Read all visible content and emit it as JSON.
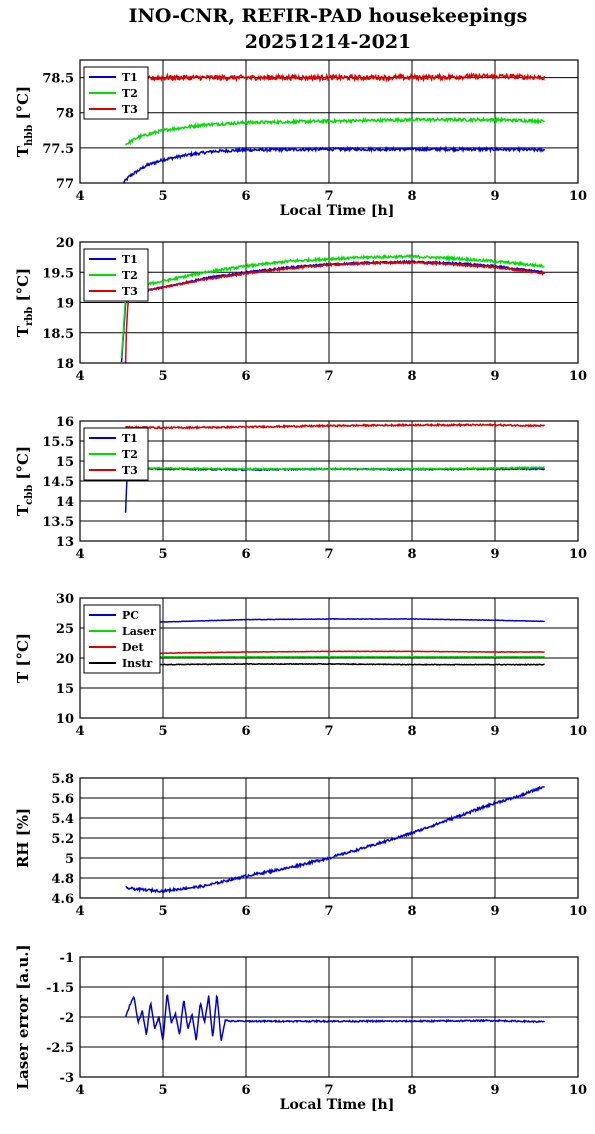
{
  "title_line1": "INO-CNR, REFIR-PAD housekeepings",
  "title_line2": "20251214-2021",
  "chart_data": [
    {
      "type": "line",
      "ylabel_main": "T",
      "ylabel_sub": "hbb",
      "ylabel_unit": " [°C]",
      "xlabel": "Local Time [h]",
      "xlim": [
        4,
        10
      ],
      "ylim": [
        77,
        78.75
      ],
      "yticks": [
        77,
        77.5,
        78,
        78.5
      ],
      "ytick_labels": [
        "77",
        "77.5",
        "78",
        "78.5"
      ],
      "xticks": [
        4,
        5,
        6,
        7,
        8,
        9,
        10
      ],
      "xtick_labels": [
        "4",
        "5",
        "6",
        "7",
        "8",
        "9",
        "10"
      ],
      "grid": true,
      "legend_position": "top-left",
      "series": [
        {
          "name": "T1",
          "color": "#0000dd",
          "noise": 0.02,
          "x": [
            4.52,
            4.6,
            4.8,
            5.0,
            5.3,
            5.6,
            6.0,
            7.0,
            8.0,
            9.0,
            9.6
          ],
          "y": [
            77.0,
            77.1,
            77.25,
            77.33,
            77.4,
            77.45,
            77.47,
            77.48,
            77.48,
            77.48,
            77.47
          ]
        },
        {
          "name": "T2",
          "color": "#00dd00",
          "noise": 0.02,
          "x": [
            4.55,
            4.7,
            5.0,
            5.5,
            6.0,
            7.0,
            8.0,
            9.0,
            9.6
          ],
          "y": [
            77.55,
            77.65,
            77.75,
            77.83,
            77.86,
            77.88,
            77.9,
            77.9,
            77.88
          ]
        },
        {
          "name": "T3",
          "color": "#dd0000",
          "noise": 0.035,
          "x": [
            4.5,
            5.0,
            6.0,
            7.0,
            8.0,
            9.0,
            9.6
          ],
          "y": [
            78.45,
            78.5,
            78.5,
            78.5,
            78.5,
            78.52,
            78.5
          ]
        }
      ]
    },
    {
      "type": "line",
      "ylabel_main": "T",
      "ylabel_sub": "rbb",
      "ylabel_unit": " [°C]",
      "xlabel": "",
      "xlim": [
        4,
        10
      ],
      "ylim": [
        18,
        20
      ],
      "yticks": [
        18,
        18.5,
        19,
        19.5,
        20
      ],
      "ytick_labels": [
        "18",
        "18.5",
        "19",
        "19.5",
        "20"
      ],
      "xticks": [
        4,
        5,
        6,
        7,
        8,
        9,
        10
      ],
      "xtick_labels": [
        "4",
        "5",
        "6",
        "7",
        "8",
        "9",
        "10"
      ],
      "grid": true,
      "legend_position": "top-left",
      "series": [
        {
          "name": "T1",
          "color": "#0000dd",
          "noise": 0.015,
          "x": [
            4.5,
            4.52,
            4.55,
            4.6,
            5.0,
            5.5,
            6.0,
            6.5,
            7.0,
            7.5,
            8.0,
            8.5,
            9.0,
            9.6
          ],
          "y": [
            18.0,
            18.4,
            19.0,
            19.15,
            19.25,
            19.4,
            19.5,
            19.58,
            19.63,
            19.66,
            19.67,
            19.65,
            19.6,
            19.5
          ]
        },
        {
          "name": "T2",
          "color": "#00dd00",
          "noise": 0.02,
          "x": [
            4.5,
            4.52,
            4.55,
            4.6,
            5.0,
            5.5,
            6.0,
            6.5,
            7.0,
            7.5,
            8.0,
            8.5,
            9.0,
            9.6
          ],
          "y": [
            18.1,
            18.5,
            19.1,
            19.25,
            19.35,
            19.5,
            19.6,
            19.68,
            19.72,
            19.75,
            19.76,
            19.73,
            19.68,
            19.6
          ]
        },
        {
          "name": "T3",
          "color": "#dd0000",
          "noise": 0.015,
          "x": [
            4.55,
            4.56,
            4.58,
            4.6,
            5.0,
            5.5,
            6.0,
            6.5,
            7.0,
            7.5,
            8.0,
            8.5,
            9.0,
            9.6
          ],
          "y": [
            18.0,
            18.6,
            19.0,
            19.15,
            19.25,
            19.38,
            19.48,
            19.56,
            19.62,
            19.65,
            19.66,
            19.63,
            19.58,
            19.48
          ]
        }
      ]
    },
    {
      "type": "line",
      "ylabel_main": "T",
      "ylabel_sub": "cbb",
      "ylabel_unit": " [°C]",
      "xlabel": "",
      "xlim": [
        4,
        10
      ],
      "ylim": [
        13,
        16
      ],
      "yticks": [
        13,
        13.5,
        14,
        14.5,
        15,
        15.5,
        16
      ],
      "ytick_labels": [
        "13",
        "13.5",
        "14",
        "14.5",
        "15",
        "15.5",
        "16"
      ],
      "xticks": [
        4,
        5,
        6,
        7,
        8,
        9,
        10
      ],
      "xtick_labels": [
        "4",
        "5",
        "6",
        "7",
        "8",
        "9",
        "10"
      ],
      "grid": true,
      "legend_position": "top-left",
      "series": [
        {
          "name": "T1",
          "color": "#0000dd",
          "noise": 0.015,
          "x": [
            4.55,
            4.56,
            4.57,
            4.6,
            5.0,
            6.0,
            7.0,
            8.0,
            9.0,
            9.6
          ],
          "y": [
            13.7,
            14.3,
            14.75,
            14.8,
            14.8,
            14.78,
            14.8,
            14.79,
            14.8,
            14.8
          ]
        },
        {
          "name": "T2",
          "color": "#00dd00",
          "noise": 0.015,
          "x": [
            4.55,
            4.57,
            4.6,
            5.0,
            6.0,
            7.0,
            8.0,
            9.0,
            9.6
          ],
          "y": [
            14.6,
            14.8,
            14.82,
            14.82,
            14.8,
            14.8,
            14.8,
            14.82,
            14.84
          ]
        },
        {
          "name": "T3",
          "color": "#dd0000",
          "noise": 0.02,
          "x": [
            4.55,
            4.6,
            5.0,
            6.0,
            7.0,
            8.0,
            9.0,
            9.6
          ],
          "y": [
            15.85,
            15.85,
            15.83,
            15.85,
            15.88,
            15.9,
            15.9,
            15.88
          ]
        }
      ]
    },
    {
      "type": "line",
      "ylabel_main": "T",
      "ylabel_sub": "",
      "ylabel_unit": " [°C]",
      "xlabel": "",
      "xlim": [
        4,
        10
      ],
      "ylim": [
        10,
        30
      ],
      "yticks": [
        10,
        15,
        20,
        25,
        30
      ],
      "ytick_labels": [
        "10",
        "15",
        "20",
        "25",
        "30"
      ],
      "xticks": [
        4,
        5,
        6,
        7,
        8,
        9,
        10
      ],
      "xtick_labels": [
        "4",
        "5",
        "6",
        "7",
        "8",
        "9",
        "10"
      ],
      "grid": true,
      "legend_position": "top-left",
      "series": [
        {
          "name": "PC",
          "color": "#0000dd",
          "noise": 0.03,
          "x": [
            4.55,
            5.0,
            5.5,
            6.0,
            7.0,
            8.0,
            9.0,
            9.6
          ],
          "y": [
            25.8,
            26.0,
            26.2,
            26.4,
            26.5,
            26.5,
            26.3,
            26.1
          ]
        },
        {
          "name": "Laser",
          "color": "#00dd00",
          "noise": 0.03,
          "x": [
            4.55,
            5.0,
            6.0,
            7.0,
            8.0,
            9.0,
            9.6
          ],
          "y": [
            20.3,
            20.2,
            20.2,
            20.2,
            20.2,
            20.2,
            20.2
          ]
        },
        {
          "name": "Det",
          "color": "#dd0000",
          "noise": 0.03,
          "x": [
            4.55,
            5.0,
            6.0,
            7.0,
            8.0,
            9.0,
            9.6
          ],
          "y": [
            20.6,
            20.8,
            21.0,
            21.1,
            21.1,
            21.0,
            21.0
          ]
        },
        {
          "name": "Instr",
          "color": "#000000",
          "noise": 0.05,
          "x": [
            4.55,
            5.0,
            6.0,
            7.0,
            8.0,
            9.0,
            9.6
          ],
          "y": [
            18.8,
            18.9,
            19.0,
            19.0,
            18.9,
            18.9,
            18.9
          ]
        }
      ]
    },
    {
      "type": "line",
      "ylabel_main": "RH [%]",
      "ylabel_sub": "",
      "ylabel_unit": "",
      "xlabel": "",
      "xlim": [
        4,
        10
      ],
      "ylim": [
        4.6,
        5.8
      ],
      "yticks": [
        4.6,
        4.8,
        5.0,
        5.2,
        5.4,
        5.6,
        5.8
      ],
      "ytick_labels": [
        "4.6",
        "4.8",
        "5",
        "5.2",
        "5.4",
        "5.6",
        "5.8"
      ],
      "xticks": [
        4,
        5,
        6,
        7,
        8,
        9,
        10
      ],
      "xtick_labels": [
        "4",
        "5",
        "6",
        "7",
        "8",
        "9",
        "10"
      ],
      "grid": true,
      "legend_position": "",
      "series": [
        {
          "name": "",
          "color": "#0000dd",
          "noise": 0.012,
          "x": [
            4.55,
            4.8,
            5.0,
            5.5,
            6.0,
            6.5,
            7.0,
            7.5,
            8.0,
            8.5,
            9.0,
            9.3,
            9.6
          ],
          "y": [
            4.7,
            4.68,
            4.67,
            4.72,
            4.82,
            4.9,
            5.0,
            5.12,
            5.25,
            5.4,
            5.55,
            5.62,
            5.72
          ]
        }
      ]
    },
    {
      "type": "line",
      "ylabel_main": "Laser error [a.u.]",
      "ylabel_sub": "",
      "ylabel_unit": "",
      "xlabel": "Local Time [h]",
      "xlim": [
        4,
        10
      ],
      "ylim": [
        -3,
        -1
      ],
      "yticks": [
        -3,
        -2.5,
        -2,
        -1.5,
        -1
      ],
      "ytick_labels": [
        "-3",
        "-2.5",
        "-2",
        "-1.5",
        "-1"
      ],
      "xticks": [
        4,
        5,
        6,
        7,
        8,
        9,
        10
      ],
      "xtick_labels": [
        "4",
        "5",
        "6",
        "7",
        "8",
        "9",
        "10"
      ],
      "grid": true,
      "legend_position": "",
      "series": [
        {
          "name": "",
          "color": "#0000dd",
          "noise": 0.012,
          "x": [
            4.55,
            4.6,
            4.65,
            4.7,
            4.75,
            4.8,
            4.85,
            4.9,
            4.95,
            5.0,
            5.05,
            5.1,
            5.15,
            5.2,
            5.25,
            5.3,
            5.35,
            5.4,
            5.45,
            5.5,
            5.55,
            5.6,
            5.65,
            5.7,
            5.75,
            5.8,
            6.0,
            7.0,
            8.0,
            9.0,
            9.6
          ],
          "y": [
            -2.0,
            -1.8,
            -1.65,
            -2.1,
            -1.9,
            -2.3,
            -1.75,
            -2.2,
            -2.0,
            -2.4,
            -1.6,
            -2.1,
            -1.95,
            -2.3,
            -1.7,
            -2.2,
            -1.95,
            -2.4,
            -1.75,
            -2.1,
            -1.65,
            -2.35,
            -1.6,
            -2.4,
            -2.05,
            -2.07,
            -2.07,
            -2.07,
            -2.07,
            -2.06,
            -2.08
          ]
        }
      ]
    }
  ]
}
